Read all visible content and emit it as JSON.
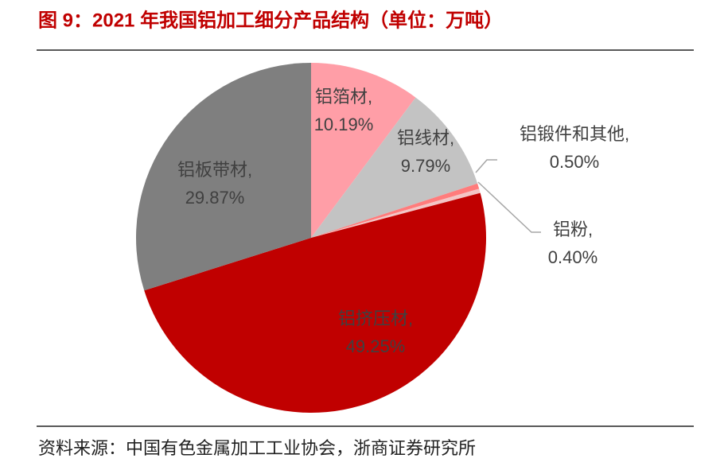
{
  "chart_data": {
    "type": "pie",
    "title": "图 9：2021 年我国铝加工细分产品结构（单位：万吨）",
    "categories": [
      "铝箔材,",
      "铝线材,",
      "铝锻件和其他,",
      "铝粉,",
      "铝挤压材,",
      "铝板带材,"
    ],
    "values": [
      10.19,
      9.79,
      0.5,
      0.4,
      49.25,
      29.87
    ],
    "value_labels": [
      "10.19%",
      "9.79%",
      "0.50%",
      "0.40%",
      "49.25%",
      "29.87%"
    ],
    "colors": [
      "#ff9ea7",
      "#c3c3c3",
      "#ff7c7c",
      "#f3c6c6",
      "#c00000",
      "#7f7f7f"
    ],
    "source": "资料来源：中国有色金属加工工业协会，浙商证券研究所"
  }
}
